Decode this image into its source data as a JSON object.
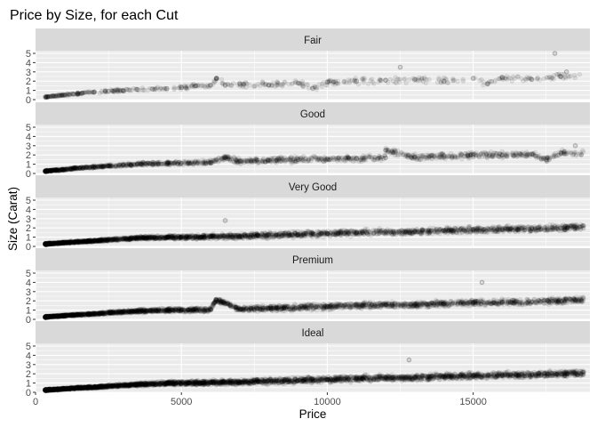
{
  "chart_data": {
    "type": "scatter",
    "title": "Price by Size, for each Cut",
    "xlabel": "Price",
    "ylabel": "Size (Carat)",
    "xlim": [
      0,
      19000
    ],
    "ylim": [
      0,
      5
    ],
    "x_ticks": [
      0,
      5000,
      10000,
      15000
    ],
    "x_tick_labels": [
      "0",
      "5000",
      "10000",
      "15000"
    ],
    "y_ticks": [
      0,
      1,
      2,
      3,
      4,
      5
    ],
    "y_tick_labels": [
      "0",
      "1",
      "2",
      "3",
      "4",
      "5"
    ],
    "grid": true,
    "point_alpha": 0.08,
    "point_color": "#000000",
    "panel_background": "#ebebeb",
    "strip_background": "#d9d9d9",
    "panels": [
      {
        "label": "Fair",
        "density": "sparse",
        "points": [
          [
            400,
            0.3
          ],
          [
            600,
            0.38
          ],
          [
            800,
            0.45
          ],
          [
            1000,
            0.5
          ],
          [
            1300,
            0.6
          ],
          [
            1600,
            0.7
          ],
          [
            2000,
            0.8
          ],
          [
            2500,
            0.9
          ],
          [
            3000,
            1.0
          ],
          [
            3500,
            1.1
          ],
          [
            4000,
            1.15
          ],
          [
            4500,
            1.2
          ],
          [
            5000,
            1.3
          ],
          [
            5500,
            1.5
          ],
          [
            6000,
            1.55
          ],
          [
            6500,
            1.6
          ],
          [
            7000,
            1.7
          ],
          [
            8000,
            1.6
          ],
          [
            9000,
            1.8
          ],
          [
            10000,
            1.9
          ],
          [
            11000,
            2.0
          ],
          [
            12000,
            2.1
          ],
          [
            13000,
            2.2
          ],
          [
            14000,
            2.0
          ],
          [
            15000,
            2.3
          ],
          [
            16000,
            2.4
          ],
          [
            17000,
            2.2
          ],
          [
            18000,
            2.5
          ],
          [
            17800,
            5.0
          ],
          [
            18200,
            3.0
          ],
          [
            12500,
            3.5
          ],
          [
            9500,
            1.2
          ],
          [
            6200,
            2.3
          ],
          [
            15500,
            1.7
          ]
        ]
      },
      {
        "label": "Good",
        "density": "medium",
        "points": [
          [
            350,
            0.25
          ],
          [
            500,
            0.3
          ],
          [
            700,
            0.35
          ],
          [
            900,
            0.4
          ],
          [
            1200,
            0.5
          ],
          [
            1500,
            0.6
          ],
          [
            2000,
            0.7
          ],
          [
            2500,
            0.8
          ],
          [
            3000,
            0.9
          ],
          [
            3500,
            1.0
          ],
          [
            4000,
            1.05
          ],
          [
            4500,
            1.1
          ],
          [
            5000,
            1.1
          ],
          [
            6000,
            1.2
          ],
          [
            7000,
            1.3
          ],
          [
            8000,
            1.45
          ],
          [
            9000,
            1.5
          ],
          [
            10000,
            1.55
          ],
          [
            11000,
            1.6
          ],
          [
            12000,
            1.7
          ],
          [
            13000,
            1.75
          ],
          [
            14000,
            1.9
          ],
          [
            15000,
            2.0
          ],
          [
            16000,
            2.0
          ],
          [
            17000,
            2.1
          ],
          [
            18000,
            2.2
          ],
          [
            18500,
            3.0
          ],
          [
            12000,
            2.5
          ],
          [
            6500,
            1.7
          ],
          [
            17500,
            1.5
          ]
        ]
      },
      {
        "label": "Very Good",
        "density": "dense",
        "points": [
          [
            350,
            0.25
          ],
          [
            500,
            0.3
          ],
          [
            700,
            0.33
          ],
          [
            900,
            0.38
          ],
          [
            1200,
            0.45
          ],
          [
            1500,
            0.5
          ],
          [
            2000,
            0.6
          ],
          [
            2500,
            0.7
          ],
          [
            3000,
            0.8
          ],
          [
            3500,
            0.9
          ],
          [
            4000,
            0.95
          ],
          [
            4500,
            1.0
          ],
          [
            5000,
            1.0
          ],
          [
            6000,
            1.05
          ],
          [
            7000,
            1.1
          ],
          [
            8000,
            1.2
          ],
          [
            9000,
            1.3
          ],
          [
            10000,
            1.4
          ],
          [
            11000,
            1.5
          ],
          [
            12000,
            1.55
          ],
          [
            13000,
            1.6
          ],
          [
            14000,
            1.7
          ],
          [
            15000,
            1.8
          ],
          [
            16000,
            1.85
          ],
          [
            17000,
            1.9
          ],
          [
            18000,
            2.0
          ],
          [
            18500,
            2.1
          ],
          [
            6500,
            2.8
          ]
        ]
      },
      {
        "label": "Premium",
        "density": "dense",
        "points": [
          [
            350,
            0.25
          ],
          [
            500,
            0.3
          ],
          [
            700,
            0.33
          ],
          [
            900,
            0.38
          ],
          [
            1200,
            0.45
          ],
          [
            1500,
            0.5
          ],
          [
            2000,
            0.6
          ],
          [
            2500,
            0.7
          ],
          [
            3000,
            0.8
          ],
          [
            3500,
            0.9
          ],
          [
            4000,
            0.95
          ],
          [
            4500,
            1.0
          ],
          [
            5000,
            1.0
          ],
          [
            6000,
            1.05
          ],
          [
            7000,
            1.1
          ],
          [
            8000,
            1.2
          ],
          [
            9000,
            1.3
          ],
          [
            10000,
            1.4
          ],
          [
            11000,
            1.5
          ],
          [
            12000,
            1.55
          ],
          [
            13000,
            1.6
          ],
          [
            14000,
            1.7
          ],
          [
            15000,
            1.8
          ],
          [
            16000,
            1.85
          ],
          [
            17000,
            1.9
          ],
          [
            18000,
            2.0
          ],
          [
            18500,
            2.1
          ],
          [
            15300,
            4.0
          ],
          [
            6200,
            2.1
          ]
        ]
      },
      {
        "label": "Ideal",
        "density": "very-dense",
        "points": [
          [
            350,
            0.23
          ],
          [
            500,
            0.28
          ],
          [
            700,
            0.31
          ],
          [
            900,
            0.35
          ],
          [
            1200,
            0.42
          ],
          [
            1500,
            0.48
          ],
          [
            2000,
            0.55
          ],
          [
            2500,
            0.65
          ],
          [
            3000,
            0.75
          ],
          [
            3500,
            0.85
          ],
          [
            4000,
            0.9
          ],
          [
            4500,
            1.0
          ],
          [
            5000,
            1.0
          ],
          [
            6000,
            1.05
          ],
          [
            7000,
            1.1
          ],
          [
            8000,
            1.2
          ],
          [
            9000,
            1.3
          ],
          [
            10000,
            1.4
          ],
          [
            11000,
            1.5
          ],
          [
            12000,
            1.55
          ],
          [
            13000,
            1.6
          ],
          [
            14000,
            1.7
          ],
          [
            15000,
            1.8
          ],
          [
            16000,
            1.85
          ],
          [
            17000,
            1.9
          ],
          [
            18000,
            2.0
          ],
          [
            18500,
            2.05
          ],
          [
            12800,
            3.5
          ]
        ]
      }
    ]
  }
}
